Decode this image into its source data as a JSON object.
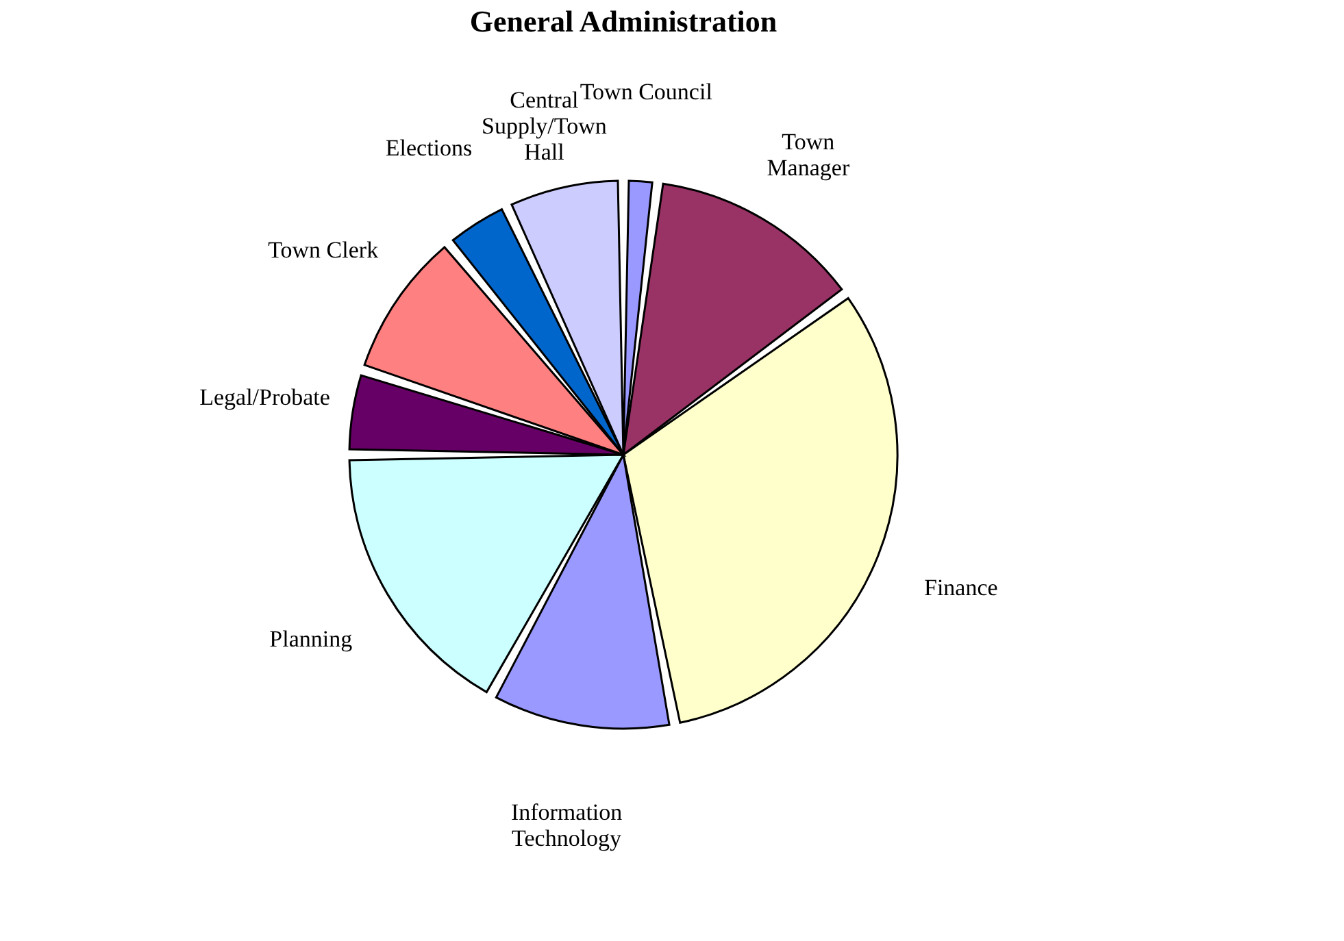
{
  "chart_data": {
    "type": "pie",
    "title": "General Administration",
    "categories": [
      "Town Council",
      "Town\nManager",
      "Finance",
      "Information\nTechnology",
      "Planning",
      "Legal/Probate",
      "Town Clerk",
      "Elections",
      "Central\nSupply/Town\nHall"
    ],
    "values": [
      2,
      13,
      32,
      11,
      17,
      5,
      9,
      4,
      7
    ],
    "colors": [
      "#9999ff",
      "#993366",
      "#ffffcc",
      "#9999ff",
      "#ccffff",
      "#660066",
      "#ff8080",
      "#0066cc",
      "#ccccff"
    ],
    "legend": false
  }
}
